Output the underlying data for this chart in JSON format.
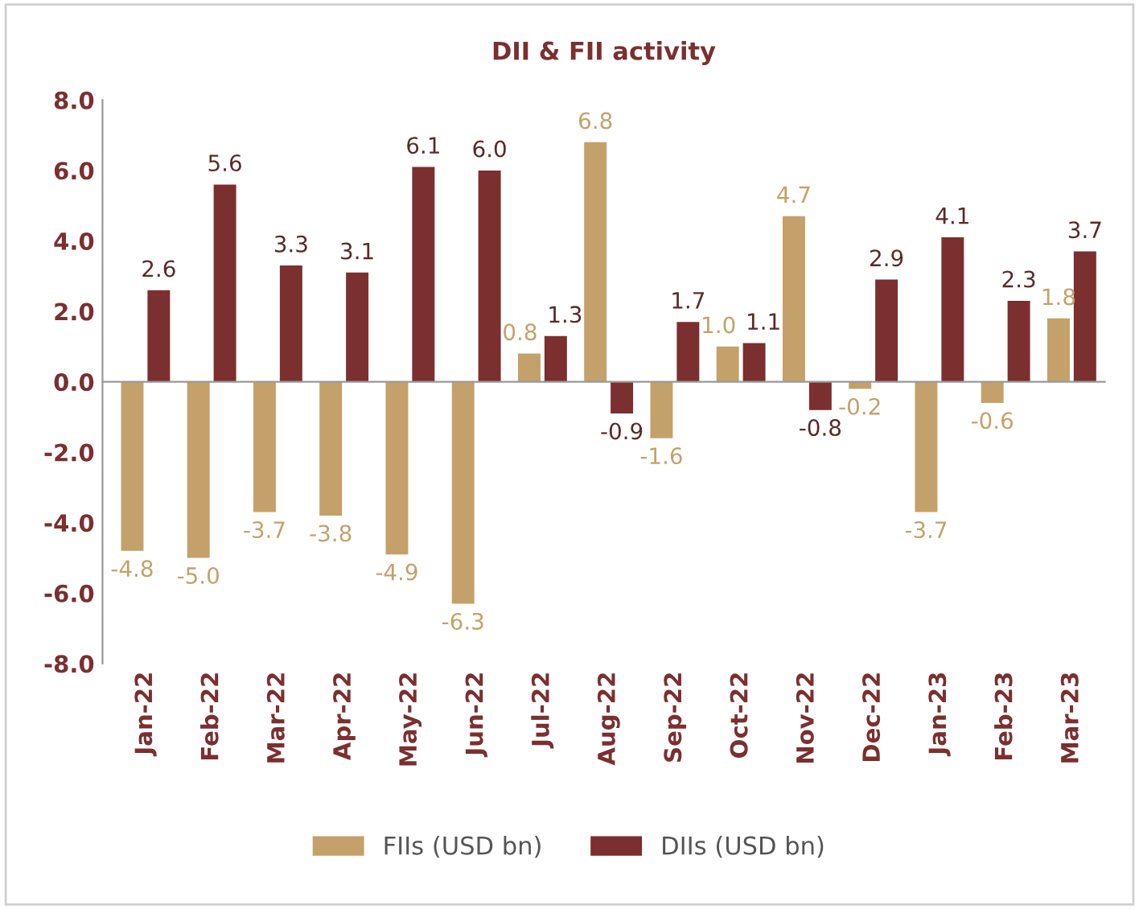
{
  "chart_data": {
    "type": "bar",
    "title": "DII & FII activity",
    "categories": [
      "Jan-22",
      "Feb-22",
      "Mar-22",
      "Apr-22",
      "May-22",
      "Jun-22",
      "Jul-22",
      "Aug-22",
      "Sep-22",
      "Oct-22",
      "Nov-22",
      "Dec-22",
      "Jan-23",
      "Feb-23",
      "Mar-23"
    ],
    "series": [
      {
        "name": "FIIs (USD bn)",
        "color": "#c4a16a",
        "values": [
          -4.8,
          -5.0,
          -3.7,
          -3.8,
          -4.9,
          -6.3,
          0.8,
          6.8,
          -1.6,
          1.0,
          4.7,
          -0.2,
          -3.7,
          -0.6,
          1.8
        ],
        "value_labels": [
          "-4.8",
          "-5.0",
          "-3.7",
          "-3.8",
          "-4.9",
          "-6.3",
          "0.8",
          "6.8",
          "-1.6",
          "1.0",
          "4.7",
          "-0.2",
          "-3.7",
          "-0.6",
          "1.8"
        ]
      },
      {
        "name": "DIIs (USD bn)",
        "color": "#7b2f2f",
        "values": [
          2.6,
          5.6,
          3.3,
          3.1,
          6.1,
          6.0,
          1.3,
          -0.9,
          1.7,
          1.1,
          -0.8,
          2.9,
          4.1,
          2.3,
          3.7
        ],
        "value_labels": [
          "2.6",
          "5.6",
          "3.3",
          "3.1",
          "6.1",
          "6.0",
          "1.3",
          "-0.9",
          "1.7",
          "1.1",
          "-0.8",
          "2.9",
          "4.1",
          "2.3",
          "3.7"
        ]
      }
    ],
    "ylim": [
      -8,
      8
    ],
    "yticks": [
      {
        "value": -8,
        "label": "-8.0"
      },
      {
        "value": -6,
        "label": "-6.0"
      },
      {
        "value": -4,
        "label": "-4.0"
      },
      {
        "value": -2,
        "label": "-2.0"
      },
      {
        "value": 0,
        "label": "0.0"
      },
      {
        "value": 2,
        "label": "2.0"
      },
      {
        "value": 4,
        "label": "4.0"
      },
      {
        "value": 6,
        "label": "6.0"
      },
      {
        "value": 8,
        "label": "8.0"
      }
    ],
    "legend": "bottom"
  }
}
